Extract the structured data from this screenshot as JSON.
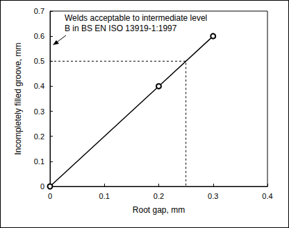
{
  "chart_data": {
    "type": "line",
    "x": [
      0,
      0.2,
      0.3
    ],
    "values": [
      0,
      0.4,
      0.6
    ],
    "color": "#000000",
    "marker": "circle",
    "xlabel": "Root gap, mm",
    "ylabel": "Incompletely filled groove, mm",
    "xlim": [
      0,
      0.4
    ],
    "xticks": [
      0,
      0.1,
      0.2,
      0.3,
      0.4
    ],
    "ylim": [
      0,
      0.7
    ],
    "yticks": [
      0,
      0.1,
      0.2,
      0.3,
      0.4,
      0.5,
      0.6,
      0.7
    ],
    "grid": false,
    "guide": {
      "x": 0.25,
      "y": 0.5,
      "line_style": "dashed"
    },
    "annotation": {
      "text": "Welds acceptable to intermediate level\nB in BS EN ISO 13919-1:1997"
    }
  }
}
